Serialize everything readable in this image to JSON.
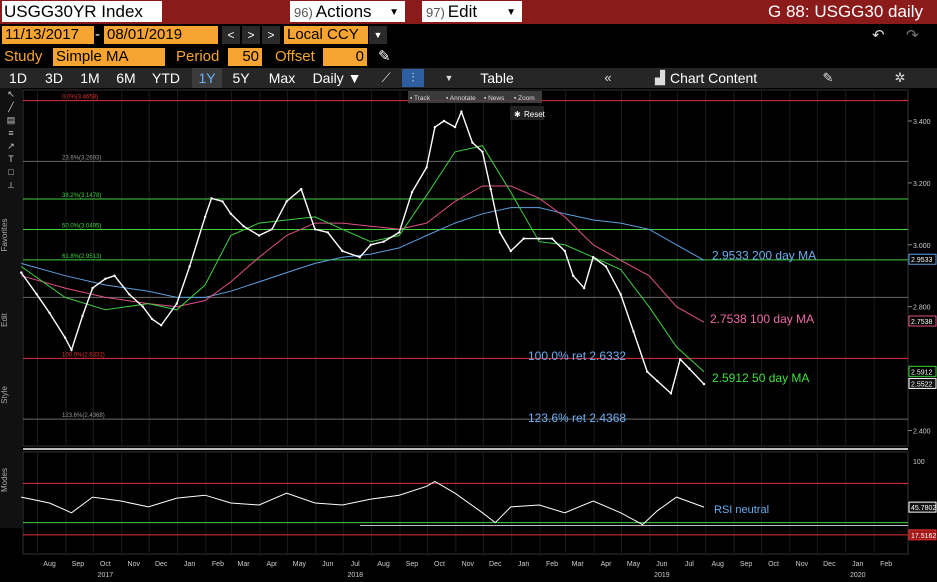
{
  "header": {
    "ticker": "USGG30YR Index",
    "actions_num": "96)",
    "actions_label": "Actions",
    "edit_num": "97)",
    "edit_label": "Edit",
    "title": "G 88: USGG30 daily"
  },
  "settings": {
    "start_date": "11/13/2017",
    "end_date": "08/01/2019",
    "currency": "Local CCY",
    "study_label": "Study",
    "study_value": "Simple MA",
    "period_label": "Period",
    "period_value": "50",
    "offset_label": "Offset",
    "offset_value": "0"
  },
  "toolbar": {
    "ranges": [
      "1D",
      "3D",
      "1M",
      "6M",
      "YTD",
      "1Y",
      "5Y",
      "Max"
    ],
    "active_range": "1Y",
    "frequency": "Daily ▼",
    "table_label": "Table",
    "chart_content_label": "Chart Content"
  },
  "chart_overlay": {
    "mini_buttons": [
      "Track",
      "Annotate",
      "News",
      "Zoom"
    ],
    "reset_label": "Reset"
  },
  "sidebar_labels": [
    "Favorites",
    "Edit",
    "Style",
    "Modes"
  ],
  "colors": {
    "red_line": "#e03030",
    "gray_line": "#6a6a6a",
    "green_line": "#40d040",
    "ma50": "#40d040",
    "ma100": "#e0508a",
    "ma200": "#5aa0e0",
    "price": "#ffffff",
    "annot_blue": "#6aaef0",
    "annot_pink": "#f06aa8",
    "annot_green": "#40e040"
  },
  "chart_data": {
    "type": "line",
    "title": "USGG30YR Index",
    "ylim": [
      2.35,
      3.5
    ],
    "y_ticks": [
      2.4,
      2.6,
      2.8,
      3.0,
      3.2,
      3.4
    ],
    "y_tick_labels": [
      "2.400",
      "2.600",
      "2.800",
      "3.000",
      "3.200",
      "3.400"
    ],
    "x_months": [
      "Aug",
      "Sep",
      "Oct",
      "Nov",
      "Dec",
      "Jan",
      "Feb",
      "Mar",
      "Apr",
      "May",
      "Jun",
      "Jul",
      "Aug",
      "Sep",
      "Oct",
      "Nov",
      "Dec",
      "Jan",
      "Feb",
      "Mar",
      "Apr",
      "May",
      "Jun",
      "Jul",
      "Aug",
      "Sep",
      "Oct",
      "Nov",
      "Dec",
      "Jan",
      "Feb"
    ],
    "x_years": [
      {
        "label": "2017",
        "month_index": 2
      },
      {
        "label": "2018",
        "month_index": 11
      },
      {
        "label": "2019",
        "month_index": 22
      },
      {
        "label": "2020",
        "month_index": 29
      }
    ],
    "fib_levels": [
      {
        "label": "0.0%(3.4658)",
        "value": 3.4658,
        "kind": "red"
      },
      {
        "label": "23.6%(3.2693)",
        "value": 3.2693,
        "kind": "gray"
      },
      {
        "label": "38.2%(3.1478)",
        "value": 3.1478,
        "kind": "green"
      },
      {
        "label": "50.0%(3.0495)",
        "value": 3.0495,
        "kind": "green"
      },
      {
        "label": "61.8%(2.9513)",
        "value": 2.9513,
        "kind": "green"
      },
      {
        "label": "",
        "value": 2.83,
        "kind": "gray"
      },
      {
        "label": "100.0%(2.6332)",
        "value": 2.6332,
        "kind": "red"
      },
      {
        "label": "123.6%(2.4368)",
        "value": 2.4368,
        "kind": "gray"
      }
    ],
    "series": [
      {
        "name": "USGG30YR",
        "x": [
          "2017-07-15",
          "2017-08-01",
          "2017-08-15",
          "2017-09-01",
          "2017-09-08",
          "2017-09-20",
          "2017-10-01",
          "2017-10-15",
          "2017-10-25",
          "2017-11-10",
          "2017-11-25",
          "2017-12-05",
          "2017-12-15",
          "2018-01-01",
          "2018-01-15",
          "2018-02-01",
          "2018-02-08",
          "2018-02-20",
          "2018-03-01",
          "2018-03-15",
          "2018-04-01",
          "2018-04-15",
          "2018-05-01",
          "2018-05-17",
          "2018-06-01",
          "2018-06-15",
          "2018-07-01",
          "2018-07-20",
          "2018-08-01",
          "2018-08-15",
          "2018-09-01",
          "2018-09-15",
          "2018-10-01",
          "2018-10-10",
          "2018-10-20",
          "2018-11-01",
          "2018-11-08",
          "2018-11-20",
          "2018-12-01",
          "2018-12-10",
          "2018-12-20",
          "2019-01-01",
          "2019-01-15",
          "2019-02-01",
          "2019-02-15",
          "2019-03-01",
          "2019-03-10",
          "2019-03-22",
          "2019-04-01",
          "2019-04-15",
          "2019-05-01",
          "2019-05-15",
          "2019-05-30",
          "2019-06-10",
          "2019-06-25",
          "2019-07-05",
          "2019-07-15",
          "2019-07-31"
        ],
        "values": [
          2.91,
          2.84,
          2.78,
          2.7,
          2.66,
          2.77,
          2.86,
          2.89,
          2.9,
          2.84,
          2.8,
          2.76,
          2.74,
          2.81,
          2.93,
          3.09,
          3.15,
          3.14,
          3.1,
          3.06,
          3.03,
          3.05,
          3.14,
          3.18,
          3.05,
          3.04,
          2.98,
          2.96,
          3.0,
          3.01,
          3.04,
          3.17,
          3.25,
          3.38,
          3.4,
          3.38,
          3.43,
          3.33,
          3.3,
          3.18,
          3.04,
          2.98,
          3.02,
          3.02,
          3.02,
          2.98,
          2.9,
          2.86,
          2.96,
          2.93,
          2.84,
          2.72,
          2.59,
          2.56,
          2.52,
          2.63,
          2.6,
          2.55
        ]
      },
      {
        "name": "50 day MA",
        "x": [
          "2017-07-15",
          "2017-09-01",
          "2017-10-15",
          "2017-12-01",
          "2018-01-01",
          "2018-02-01",
          "2018-03-01",
          "2018-04-01",
          "2018-05-01",
          "2018-06-01",
          "2018-07-01",
          "2018-08-01",
          "2018-09-01",
          "2018-10-01",
          "2018-11-01",
          "2018-12-01",
          "2019-01-01",
          "2019-02-01",
          "2019-03-01",
          "2019-04-01",
          "2019-05-01",
          "2019-06-01",
          "2019-07-01",
          "2019-07-31"
        ],
        "values": [
          2.93,
          2.83,
          2.79,
          2.81,
          2.79,
          2.87,
          3.03,
          3.07,
          3.08,
          3.09,
          3.05,
          3.01,
          3.03,
          3.16,
          3.3,
          3.32,
          3.17,
          3.01,
          3.0,
          2.96,
          2.92,
          2.8,
          2.67,
          2.59
        ]
      },
      {
        "name": "100 day MA",
        "x": [
          "2017-07-15",
          "2017-09-01",
          "2017-10-15",
          "2017-12-01",
          "2018-01-01",
          "2018-02-01",
          "2018-03-01",
          "2018-04-01",
          "2018-05-01",
          "2018-06-01",
          "2018-07-01",
          "2018-08-01",
          "2018-09-01",
          "2018-10-01",
          "2018-11-01",
          "2018-12-01",
          "2019-01-01",
          "2019-02-01",
          "2019-03-01",
          "2019-04-01",
          "2019-05-01",
          "2019-06-01",
          "2019-07-01",
          "2019-07-31"
        ],
        "values": [
          2.9,
          2.86,
          2.83,
          2.81,
          2.8,
          2.82,
          2.88,
          2.96,
          3.03,
          3.07,
          3.07,
          3.06,
          3.05,
          3.07,
          3.14,
          3.19,
          3.19,
          3.15,
          3.09,
          3.0,
          2.95,
          2.9,
          2.8,
          2.75
        ]
      },
      {
        "name": "200 day MA",
        "x": [
          "2017-07-15",
          "2017-09-01",
          "2017-10-15",
          "2017-12-01",
          "2018-01-01",
          "2018-02-01",
          "2018-03-01",
          "2018-04-01",
          "2018-05-01",
          "2018-06-01",
          "2018-07-01",
          "2018-08-01",
          "2018-09-01",
          "2018-10-01",
          "2018-11-01",
          "2018-12-01",
          "2019-01-01",
          "2019-02-01",
          "2019-03-01",
          "2019-04-01",
          "2019-05-01",
          "2019-06-01",
          "2019-07-01",
          "2019-07-31"
        ],
        "values": [
          2.94,
          2.9,
          2.87,
          2.85,
          2.83,
          2.83,
          2.85,
          2.88,
          2.91,
          2.94,
          2.96,
          2.97,
          2.99,
          3.03,
          3.07,
          3.1,
          3.12,
          3.12,
          3.1,
          3.08,
          3.07,
          3.05,
          3.0,
          2.95
        ]
      }
    ],
    "right_badges": [
      {
        "label": "2.9533",
        "value": 2.9533,
        "color": "#5aa0e0"
      },
      {
        "label": "2.7538",
        "value": 2.7538,
        "color": "#e0508a"
      },
      {
        "label": "2.5912",
        "value": 2.5912,
        "color": "#40d040"
      },
      {
        "label": "2.5522",
        "value": 2.5522,
        "color": "#ffffff"
      }
    ],
    "annotations": [
      {
        "text": "2.9533 200 day MA",
        "color": "#6aaef0"
      },
      {
        "text": "2.7538 100 day MA",
        "color": "#f06aa8"
      },
      {
        "text": "100.0% ret 2.6332",
        "color": "#6aaef0"
      },
      {
        "text": "2.5912 50 day  MA",
        "color": "#40e040"
      },
      {
        "text": "123.6% ret 2.4368",
        "color": "#6aaef0"
      }
    ],
    "rsi": {
      "name": "RSI",
      "ylim": [
        0,
        100
      ],
      "top_tick": "100",
      "value_label": "45.7802",
      "lower_label": "17.5162",
      "neutral_label": "RSI neutral",
      "x": [
        "2017-07-15",
        "2017-08-15",
        "2017-09-08",
        "2017-10-01",
        "2017-11-01",
        "2017-12-01",
        "2018-01-01",
        "2018-02-01",
        "2018-03-01",
        "2018-04-01",
        "2018-05-01",
        "2018-06-01",
        "2018-07-01",
        "2018-08-01",
        "2018-09-01",
        "2018-10-01",
        "2018-10-10",
        "2018-11-01",
        "2018-12-01",
        "2018-12-15",
        "2019-01-01",
        "2019-02-01",
        "2019-03-01",
        "2019-04-01",
        "2019-05-01",
        "2019-05-25",
        "2019-06-10",
        "2019-07-01",
        "2019-07-31"
      ],
      "values": [
        56,
        50,
        40,
        56,
        52,
        46,
        55,
        58,
        50,
        48,
        60,
        50,
        48,
        54,
        58,
        67,
        72,
        60,
        40,
        30,
        46,
        48,
        40,
        52,
        40,
        28,
        42,
        56,
        45.78
      ]
    }
  }
}
